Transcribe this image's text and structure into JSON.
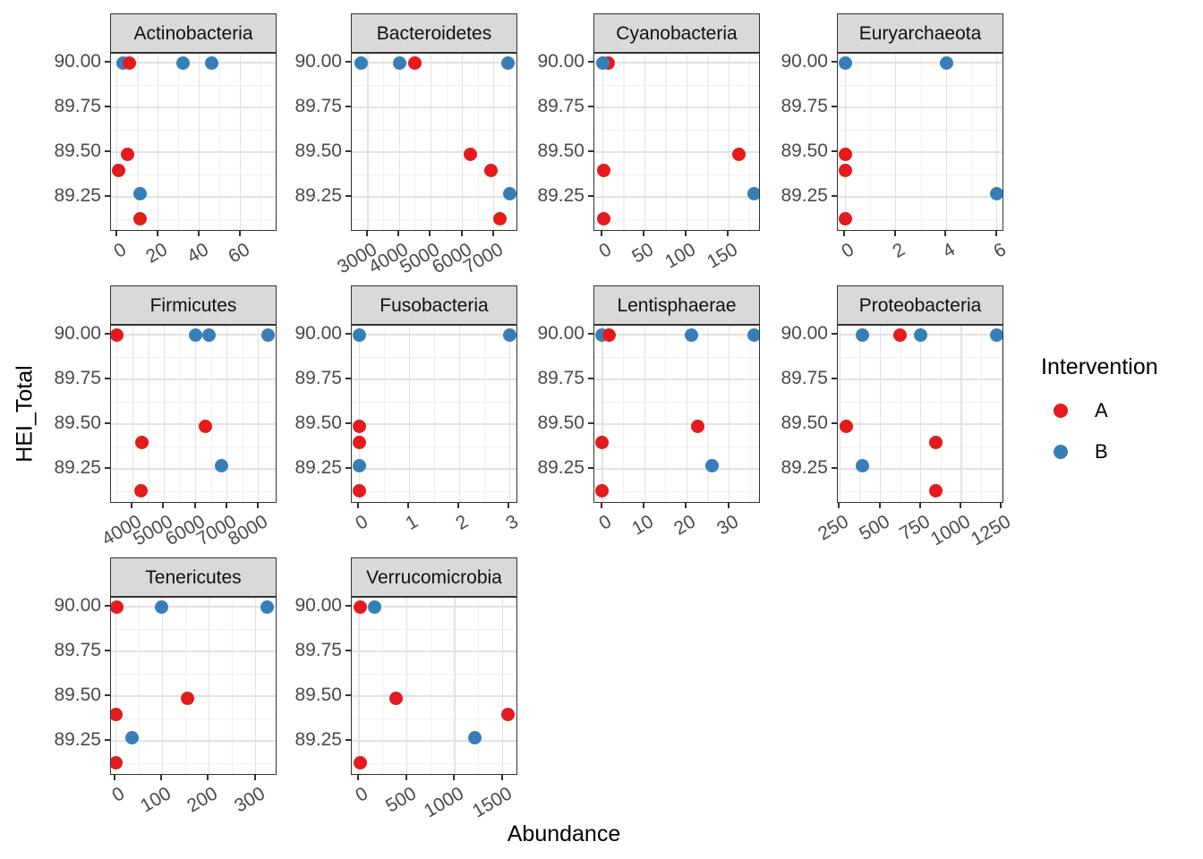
{
  "figure": {
    "x_axis_label": "Abundance",
    "y_axis_label": "HEI_Total",
    "colors": {
      "A": "#E41A1C",
      "B": "#377EB8"
    },
    "grid": "on",
    "y_ticks": {
      "values": [
        90.0,
        89.75,
        89.5,
        89.25
      ],
      "labels": [
        "90.00",
        "89.75",
        "89.50",
        "89.25"
      ]
    },
    "y_range": [
      89.055,
      90.05
    ]
  },
  "legend": {
    "title": "Intervention",
    "position": "right",
    "items": [
      {
        "label": "A",
        "color": "#E41A1C"
      },
      {
        "label": "B",
        "color": "#377EB8"
      }
    ]
  },
  "chart_data": [
    {
      "type": "scatter",
      "title": "Actinobacteria",
      "x_range": [
        -3,
        78
      ],
      "x_ticks": {
        "values": [
          0,
          20,
          40,
          60
        ],
        "labels": [
          "0",
          "20",
          "40",
          "60"
        ]
      },
      "points": [
        {
          "x": 3,
          "y": 90.0,
          "group": "B"
        },
        {
          "x": 6,
          "y": 90.0,
          "group": "A"
        },
        {
          "x": 32,
          "y": 90.0,
          "group": "B"
        },
        {
          "x": 46,
          "y": 90.0,
          "group": "B"
        },
        {
          "x": 5,
          "y": 89.49,
          "group": "A"
        },
        {
          "x": 0.5,
          "y": 89.4,
          "group": "A"
        },
        {
          "x": 11,
          "y": 89.27,
          "group": "B"
        },
        {
          "x": 11,
          "y": 89.13,
          "group": "A"
        }
      ]
    },
    {
      "type": "scatter",
      "title": "Bacteroidetes",
      "x_range": [
        2490,
        7770
      ],
      "x_ticks": {
        "values": [
          3000,
          4000,
          5000,
          6000,
          7000
        ],
        "labels": [
          "3000",
          "4000",
          "5000",
          "6000",
          "7000"
        ]
      },
      "points": [
        {
          "x": 2800,
          "y": 90.0,
          "group": "B"
        },
        {
          "x": 4000,
          "y": 90.0,
          "group": "B"
        },
        {
          "x": 4480,
          "y": 90.0,
          "group": "A"
        },
        {
          "x": 7450,
          "y": 90.0,
          "group": "B"
        },
        {
          "x": 6250,
          "y": 89.49,
          "group": "A"
        },
        {
          "x": 6900,
          "y": 89.4,
          "group": "A"
        },
        {
          "x": 7500,
          "y": 89.27,
          "group": "B"
        },
        {
          "x": 7200,
          "y": 89.13,
          "group": "A"
        }
      ]
    },
    {
      "type": "scatter",
      "title": "Cyanobacteria",
      "x_range": [
        -10,
        188
      ],
      "x_ticks": {
        "values": [
          0,
          50,
          100,
          150
        ],
        "labels": [
          "0",
          "50",
          "100",
          "150"
        ]
      },
      "points": [
        {
          "x": 7,
          "y": 90.0,
          "group": "A"
        },
        {
          "x": 0,
          "y": 90.0,
          "group": "B"
        },
        {
          "x": 162,
          "y": 89.49,
          "group": "A"
        },
        {
          "x": 1,
          "y": 89.4,
          "group": "A"
        },
        {
          "x": 180,
          "y": 89.27,
          "group": "B"
        },
        {
          "x": 1,
          "y": 89.13,
          "group": "A"
        }
      ]
    },
    {
      "type": "scatter",
      "title": "Euryarchaeota",
      "x_range": [
        -0.3,
        6.3
      ],
      "x_ticks": {
        "values": [
          0,
          2,
          4,
          6
        ],
        "labels": [
          "0",
          "2",
          "4",
          "6"
        ]
      },
      "points": [
        {
          "x": 0,
          "y": 90.0,
          "group": "B"
        },
        {
          "x": 4,
          "y": 90.0,
          "group": "B"
        },
        {
          "x": 0,
          "y": 89.49,
          "group": "A"
        },
        {
          "x": 0,
          "y": 89.4,
          "group": "A"
        },
        {
          "x": 6,
          "y": 89.27,
          "group": "B"
        },
        {
          "x": 0,
          "y": 89.13,
          "group": "A"
        }
      ]
    },
    {
      "type": "scatter",
      "title": "Firmicutes",
      "x_range": [
        3310,
        8600
      ],
      "x_ticks": {
        "values": [
          4000,
          5000,
          6000,
          7000,
          8000
        ],
        "labels": [
          "4000",
          "5000",
          "6000",
          "7000",
          "8000"
        ]
      },
      "points": [
        {
          "x": 3500,
          "y": 90.0,
          "group": "A"
        },
        {
          "x": 6000,
          "y": 90.0,
          "group": "B"
        },
        {
          "x": 6430,
          "y": 90.0,
          "group": "B"
        },
        {
          "x": 8290,
          "y": 90.0,
          "group": "B"
        },
        {
          "x": 6310,
          "y": 89.49,
          "group": "A"
        },
        {
          "x": 4290,
          "y": 89.4,
          "group": "A"
        },
        {
          "x": 6830,
          "y": 89.27,
          "group": "B"
        },
        {
          "x": 4250,
          "y": 89.13,
          "group": "A"
        }
      ]
    },
    {
      "type": "scatter",
      "title": "Fusobacteria",
      "x_range": [
        -0.15,
        3.17
      ],
      "x_ticks": {
        "values": [
          0,
          1,
          2,
          3
        ],
        "labels": [
          "0",
          "1",
          "2",
          "3"
        ]
      },
      "points": [
        {
          "x": 0,
          "y": 90.0,
          "group": "B"
        },
        {
          "x": 3,
          "y": 90.0,
          "group": "B"
        },
        {
          "x": 0,
          "y": 89.49,
          "group": "A"
        },
        {
          "x": 0,
          "y": 89.4,
          "group": "A"
        },
        {
          "x": 0,
          "y": 89.27,
          "group": "B"
        },
        {
          "x": 0,
          "y": 89.13,
          "group": "A"
        }
      ]
    },
    {
      "type": "scatter",
      "title": "Lentisphaerae",
      "x_range": [
        -1.9,
        37.5
      ],
      "x_ticks": {
        "values": [
          0,
          10,
          20,
          30
        ],
        "labels": [
          "0",
          "10",
          "20",
          "30"
        ]
      },
      "points": [
        {
          "x": 0,
          "y": 90.0,
          "group": "B"
        },
        {
          "x": 1.5,
          "y": 90.0,
          "group": "A"
        },
        {
          "x": 21,
          "y": 90.0,
          "group": "B"
        },
        {
          "x": 36,
          "y": 90.0,
          "group": "B"
        },
        {
          "x": 22.5,
          "y": 89.49,
          "group": "A"
        },
        {
          "x": 0,
          "y": 89.4,
          "group": "A"
        },
        {
          "x": 26,
          "y": 89.27,
          "group": "B"
        },
        {
          "x": 0,
          "y": 89.13,
          "group": "A"
        }
      ]
    },
    {
      "type": "scatter",
      "title": "Proteobacteria",
      "x_range": [
        237,
        1265
      ],
      "x_ticks": {
        "values": [
          250,
          500,
          750,
          1000,
          1250
        ],
        "labels": [
          "250",
          "500",
          "750",
          "1000",
          "1250"
        ]
      },
      "points": [
        {
          "x": 390,
          "y": 90.0,
          "group": "B"
        },
        {
          "x": 620,
          "y": 90.0,
          "group": "A"
        },
        {
          "x": 750,
          "y": 90.0,
          "group": "B"
        },
        {
          "x": 1220,
          "y": 90.0,
          "group": "B"
        },
        {
          "x": 290,
          "y": 89.49,
          "group": "A"
        },
        {
          "x": 840,
          "y": 89.4,
          "group": "A"
        },
        {
          "x": 390,
          "y": 89.27,
          "group": "B"
        },
        {
          "x": 840,
          "y": 89.13,
          "group": "A"
        }
      ]
    },
    {
      "type": "scatter",
      "title": "Tenericutes",
      "x_range": [
        -10,
        347
      ],
      "x_ticks": {
        "values": [
          0,
          100,
          200,
          300
        ],
        "labels": [
          "0",
          "100",
          "200",
          "300"
        ]
      },
      "points": [
        {
          "x": 2,
          "y": 90.0,
          "group": "A"
        },
        {
          "x": 98,
          "y": 90.0,
          "group": "B"
        },
        {
          "x": 325,
          "y": 90.0,
          "group": "B"
        },
        {
          "x": 155,
          "y": 89.49,
          "group": "A"
        },
        {
          "x": 0,
          "y": 89.4,
          "group": "A"
        },
        {
          "x": 35,
          "y": 89.27,
          "group": "B"
        },
        {
          "x": 0,
          "y": 89.13,
          "group": "A"
        }
      ]
    },
    {
      "type": "scatter",
      "title": "Verrucomicrobia",
      "x_range": [
        -75,
        1663
      ],
      "x_ticks": {
        "values": [
          0,
          500,
          1000,
          1500
        ],
        "labels": [
          "0",
          "500",
          "1000",
          "1500"
        ]
      },
      "points": [
        {
          "x": 10,
          "y": 90.0,
          "group": "A"
        },
        {
          "x": 160,
          "y": 90.0,
          "group": "B"
        },
        {
          "x": 390,
          "y": 89.49,
          "group": "A"
        },
        {
          "x": 1560,
          "y": 89.4,
          "group": "A"
        },
        {
          "x": 1210,
          "y": 89.27,
          "group": "B"
        },
        {
          "x": 10,
          "y": 89.13,
          "group": "A"
        }
      ]
    }
  ]
}
